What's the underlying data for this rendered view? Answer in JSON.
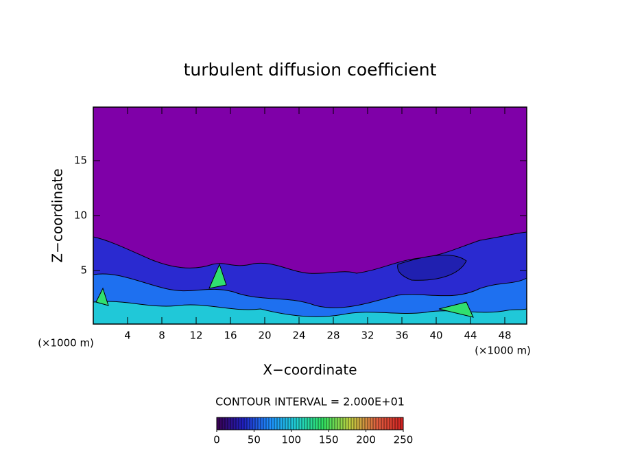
{
  "chart_data": {
    "type": "contour",
    "title": "turbulent diffusion coefficient",
    "x_label": "X−coordinate",
    "y_label": "Z−coordinate",
    "x_unit": "(×1000 m)",
    "y_unit": "(×1000 m)",
    "xlim": [
      0,
      50.56
    ],
    "xticks": [
      4,
      8,
      12,
      16,
      20,
      24,
      28,
      32,
      36,
      40,
      44,
      48
    ],
    "ylim": [
      0.125,
      19.875
    ],
    "yticks": [
      5,
      10,
      15
    ],
    "background_color": "#7f00a8",
    "contour_interval_label": "CONTOUR INTERVAL = 2.000E+01",
    "colorbar": {
      "lim": [
        0,
        250
      ],
      "ticks": [
        0,
        50,
        100,
        150,
        200,
        250
      ],
      "colors": [
        "#3a0050",
        "#2020c0",
        "#1e90ff",
        "#20d0d0",
        "#30e060",
        "#c0d040",
        "#e06040",
        "#d02020"
      ]
    }
  }
}
